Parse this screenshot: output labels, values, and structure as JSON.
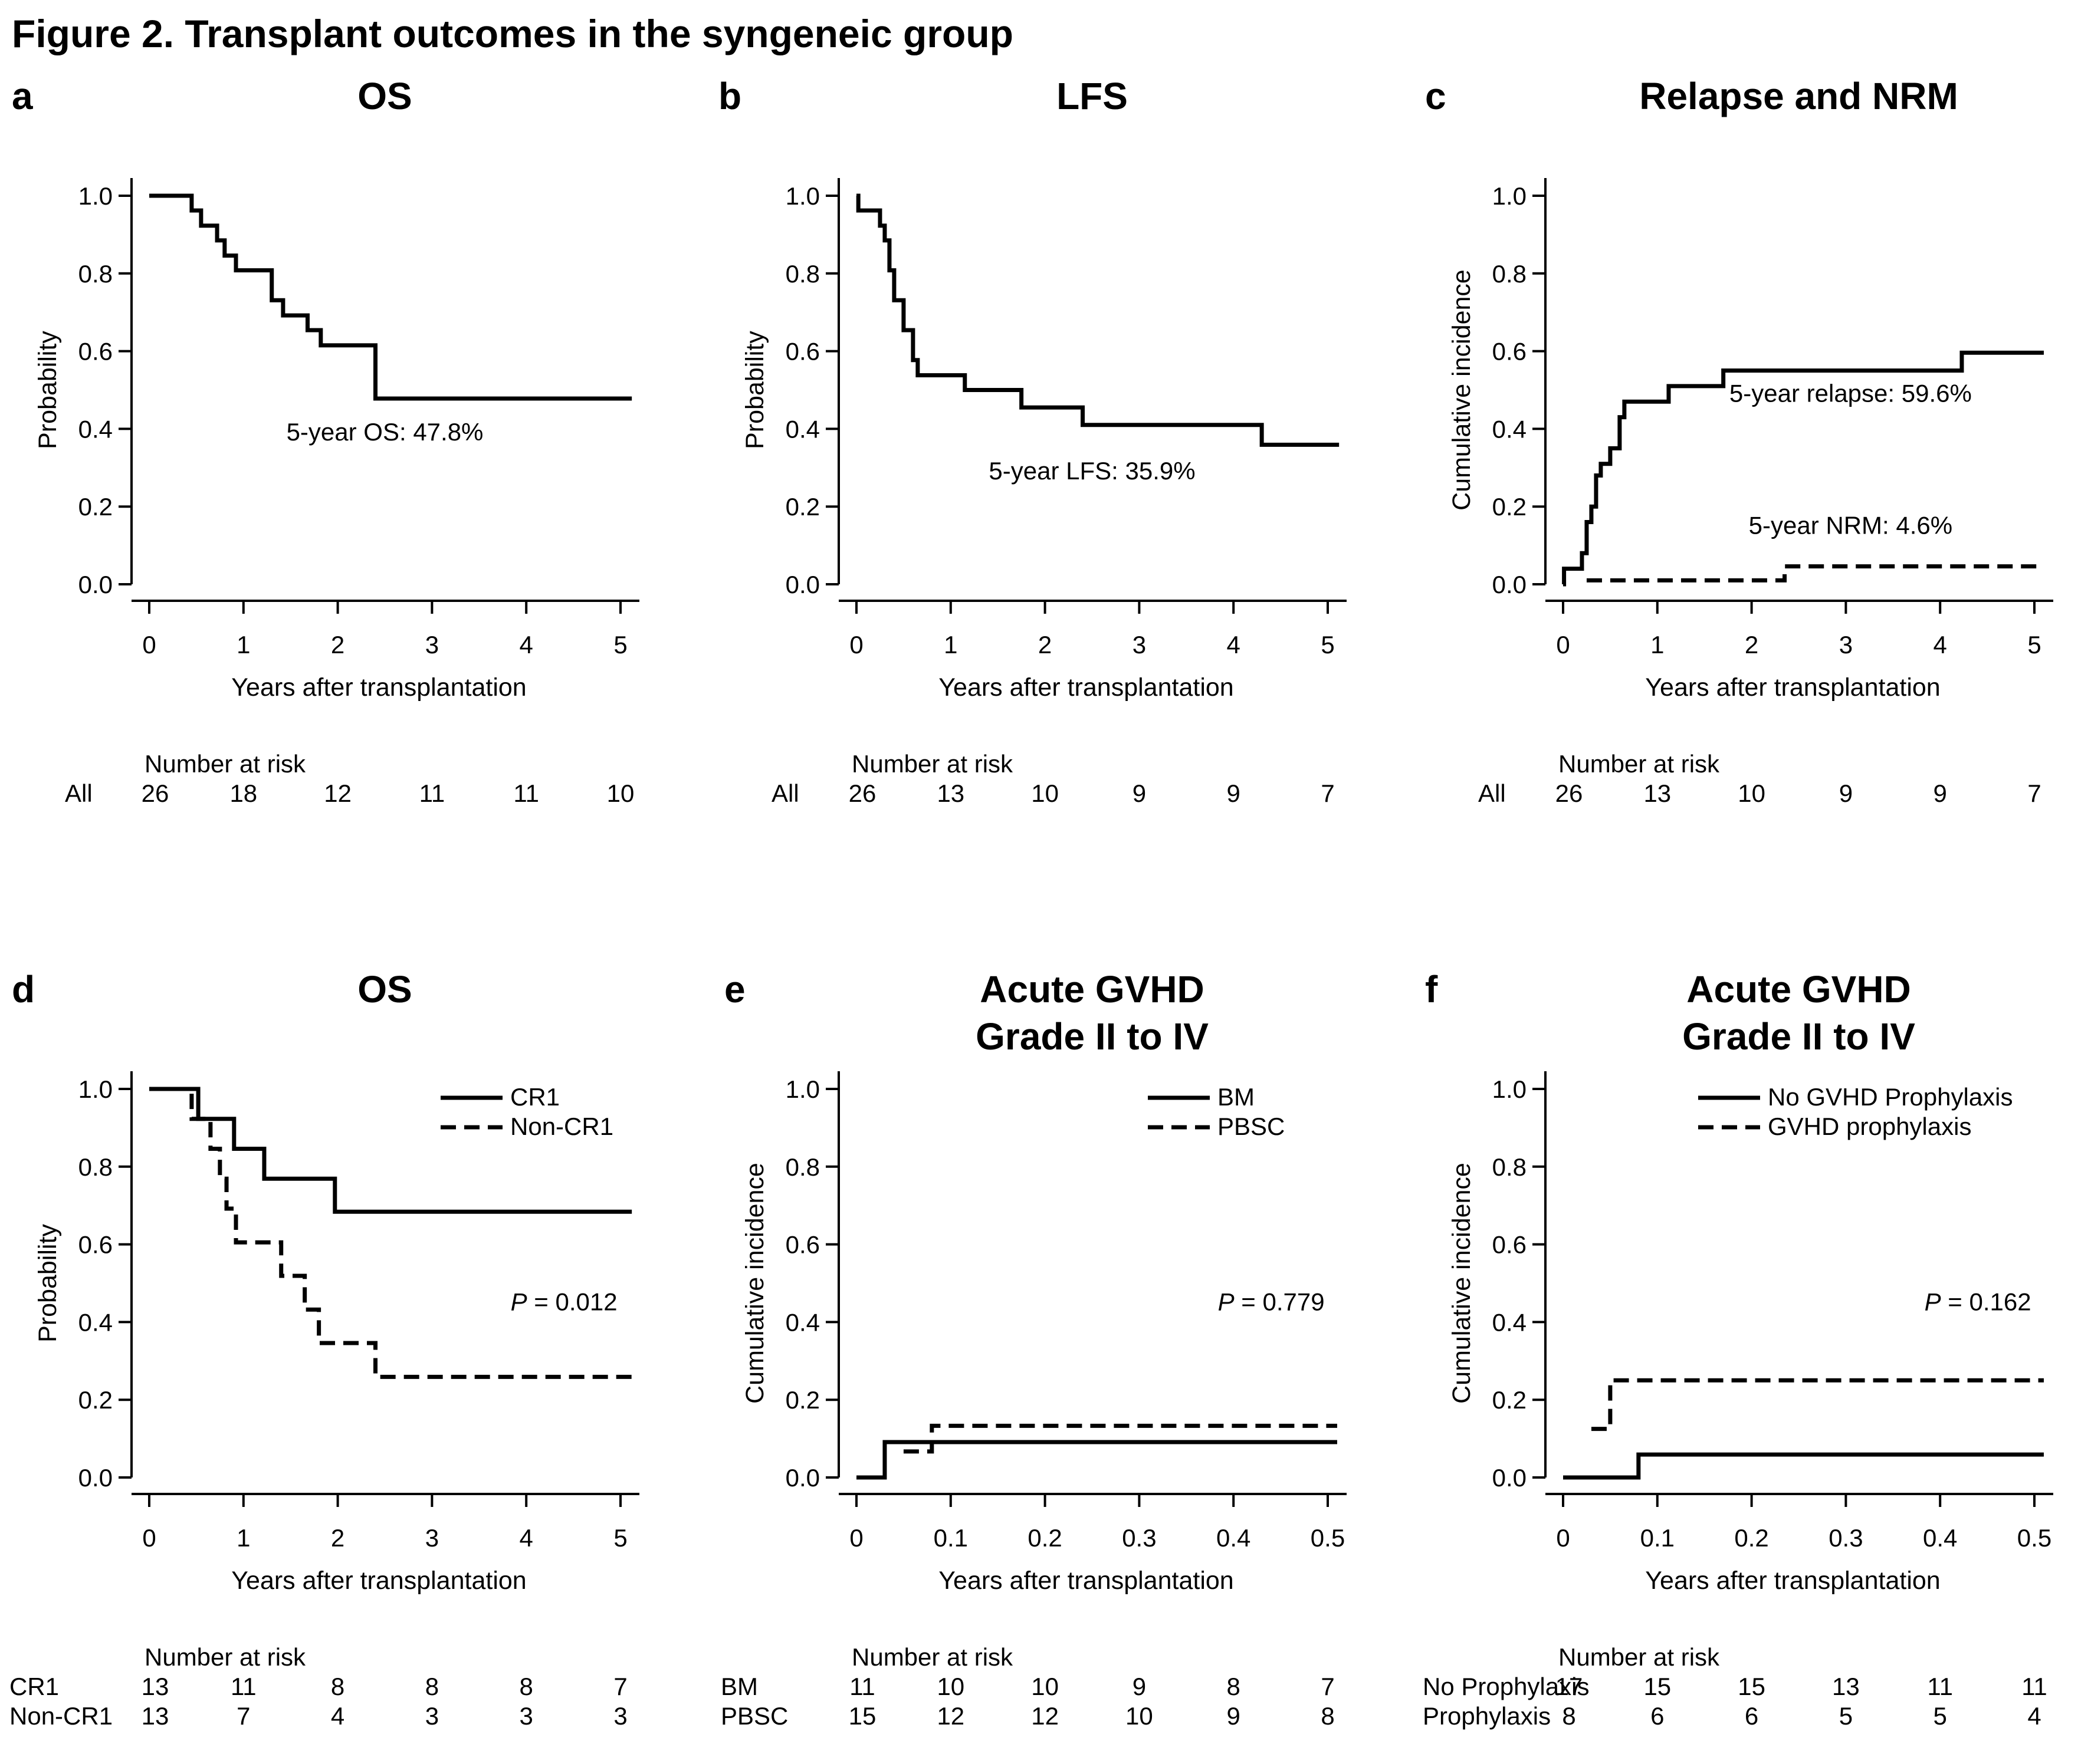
{
  "figure_title": "Figure 2. Transplant outcomes in the syngeneic group",
  "chart_data": [
    {
      "id": "a",
      "letter": "a",
      "type": "line",
      "step": true,
      "title": [
        "OS"
      ],
      "xlabel": "Years after transplantation",
      "ylabel": "Probability",
      "xlim": [
        0,
        5
      ],
      "ylim": [
        0,
        1
      ],
      "xticks": [
        0,
        1,
        2,
        3,
        4,
        5
      ],
      "xtick_labels": [
        "0",
        "1",
        "2",
        "3",
        "4",
        "5"
      ],
      "yticks": [
        0,
        0.2,
        0.4,
        0.6,
        0.8,
        1.0
      ],
      "ytick_labels": [
        "0.0",
        "0.2",
        "0.4",
        "0.6",
        "0.8",
        "1.0"
      ],
      "series": [
        {
          "name": "All",
          "style": "solid",
          "x": [
            0,
            0.45,
            0.55,
            0.72,
            0.8,
            0.92,
            1.3,
            1.42,
            1.68,
            1.82,
            2.4,
            5.12
          ],
          "y": [
            1.0,
            0.962,
            0.923,
            0.885,
            0.846,
            0.808,
            0.731,
            0.692,
            0.654,
            0.615,
            0.478,
            0.478
          ]
        }
      ],
      "annotations": [
        {
          "text": "5-year OS: 47.8%",
          "x": 2.5,
          "y": 0.37
        }
      ],
      "risk_title": "Number at risk",
      "risk_rows": [
        {
          "label": "All",
          "values": [
            "26",
            "18",
            "12",
            "11",
            "11",
            "10"
          ]
        }
      ]
    },
    {
      "id": "b",
      "letter": "b",
      "type": "line",
      "step": true,
      "title": [
        "LFS"
      ],
      "xlabel": "Years after transplantation",
      "ylabel": "Probability",
      "xlim": [
        0,
        5
      ],
      "ylim": [
        0,
        1
      ],
      "xticks": [
        0,
        1,
        2,
        3,
        4,
        5
      ],
      "xtick_labels": [
        "0",
        "1",
        "2",
        "3",
        "4",
        "5"
      ],
      "yticks": [
        0,
        0.2,
        0.4,
        0.6,
        0.8,
        1.0
      ],
      "ytick_labels": [
        "0.0",
        "0.2",
        "0.4",
        "0.6",
        "0.8",
        "1.0"
      ],
      "series": [
        {
          "name": "All",
          "style": "solid",
          "x": [
            0,
            0.02,
            0.25,
            0.3,
            0.35,
            0.4,
            0.5,
            0.6,
            0.65,
            1.15,
            1.75,
            2.4,
            4.3,
            5.12
          ],
          "y": [
            1.0,
            0.962,
            0.923,
            0.885,
            0.808,
            0.731,
            0.654,
            0.577,
            0.538,
            0.5,
            0.455,
            0.41,
            0.359,
            0.359
          ]
        }
      ],
      "annotations": [
        {
          "text": "5-year LFS: 35.9%",
          "x": 2.5,
          "y": 0.27
        }
      ],
      "risk_title": "Number at risk",
      "risk_rows": [
        {
          "label": "All",
          "values": [
            "26",
            "13",
            "10",
            "9",
            "9",
            "7"
          ]
        }
      ]
    },
    {
      "id": "c",
      "letter": "c",
      "type": "line",
      "step": true,
      "title": [
        "Relapse and NRM"
      ],
      "xlabel": "Years after transplantation",
      "ylabel": "Cumulative incidence",
      "xlim": [
        0,
        5
      ],
      "ylim": [
        0,
        1
      ],
      "xticks": [
        0,
        1,
        2,
        3,
        4,
        5
      ],
      "xtick_labels": [
        "0",
        "1",
        "2",
        "3",
        "4",
        "5"
      ],
      "yticks": [
        0,
        0.2,
        0.4,
        0.6,
        0.8,
        1.0
      ],
      "ytick_labels": [
        "0.0",
        "0.2",
        "0.4",
        "0.6",
        "0.8",
        "1.0"
      ],
      "series": [
        {
          "name": "Relapse",
          "style": "solid",
          "x": [
            0,
            0.01,
            0.2,
            0.25,
            0.3,
            0.35,
            0.4,
            0.5,
            0.6,
            0.65,
            1.12,
            1.7,
            4.23,
            5.1
          ],
          "y": [
            0,
            0.04,
            0.08,
            0.16,
            0.2,
            0.28,
            0.31,
            0.35,
            0.43,
            0.47,
            0.51,
            0.55,
            0.596,
            0.596
          ]
        },
        {
          "name": "NRM",
          "style": "dashed",
          "x": [
            0.25,
            2.35,
            5.1
          ],
          "y": [
            0.01,
            0.046,
            0.046
          ]
        }
      ],
      "annotations": [
        {
          "text": "5-year relapse: 59.6%",
          "x": 3.05,
          "y": 0.47
        },
        {
          "text": "5-year NRM: 4.6%",
          "x": 3.05,
          "y": 0.13
        }
      ],
      "risk_title": "Number at risk",
      "risk_rows": [
        {
          "label": "All",
          "values": [
            "26",
            "13",
            "10",
            "9",
            "9",
            "7"
          ]
        }
      ]
    },
    {
      "id": "d",
      "letter": "d",
      "type": "line",
      "step": true,
      "title": [
        "OS"
      ],
      "xlabel": "Years after transplantation",
      "ylabel": "Probability",
      "xlim": [
        0,
        5
      ],
      "ylim": [
        0,
        1
      ],
      "xticks": [
        0,
        1,
        2,
        3,
        4,
        5
      ],
      "xtick_labels": [
        "0",
        "1",
        "2",
        "3",
        "4",
        "5"
      ],
      "yticks": [
        0,
        0.2,
        0.4,
        0.6,
        0.8,
        1.0
      ],
      "ytick_labels": [
        "0.0",
        "0.2",
        "0.4",
        "0.6",
        "0.8",
        "1.0"
      ],
      "series": [
        {
          "name": "CR1",
          "style": "solid",
          "x": [
            0,
            0.52,
            0.9,
            1.22,
            1.97,
            5.12
          ],
          "y": [
            1.0,
            0.923,
            0.846,
            0.769,
            0.684,
            0.684
          ]
        },
        {
          "name": "Non-CR1",
          "style": "dashed",
          "x": [
            0,
            0.45,
            0.65,
            0.75,
            0.82,
            0.92,
            1.4,
            1.65,
            1.8,
            2.4,
            5.12
          ],
          "y": [
            1.0,
            0.923,
            0.846,
            0.769,
            0.692,
            0.605,
            0.519,
            0.432,
            0.346,
            0.259,
            0.259
          ]
        }
      ],
      "legend": [
        {
          "label": "CR1",
          "style": "solid"
        },
        {
          "label": "Non-CR1",
          "style": "dashed"
        }
      ],
      "pvalue": {
        "label": "P",
        "text": " = 0.012",
        "x": 4.4,
        "y": 0.43
      },
      "risk_title": "Number at risk",
      "risk_rows": [
        {
          "label": "CR1",
          "values": [
            "13",
            "11",
            "8",
            "8",
            "8",
            "7"
          ]
        },
        {
          "label": "Non-CR1",
          "values": [
            "13",
            "7",
            "4",
            "3",
            "3",
            "3"
          ]
        }
      ]
    },
    {
      "id": "e",
      "letter": "e",
      "type": "line",
      "step": true,
      "title": [
        "Acute GVHD",
        "Grade II to IV"
      ],
      "xlabel": "Years after transplantation",
      "ylabel": "Cumulative incidence",
      "xlim": [
        0,
        0.5
      ],
      "ylim": [
        0,
        1
      ],
      "xticks": [
        0,
        0.1,
        0.2,
        0.3,
        0.4,
        0.5
      ],
      "xtick_labels": [
        "0",
        "0.1",
        "0.2",
        "0.3",
        "0.4",
        "0.5"
      ],
      "yticks": [
        0,
        0.2,
        0.4,
        0.6,
        0.8,
        1.0
      ],
      "ytick_labels": [
        "0.0",
        "0.2",
        "0.4",
        "0.6",
        "0.8",
        "1.0"
      ],
      "series": [
        {
          "name": "BM",
          "style": "solid",
          "x": [
            0,
            0.03,
            0.51
          ],
          "y": [
            0,
            0.091,
            0.091
          ]
        },
        {
          "name": "PBSC",
          "style": "dashed",
          "x": [
            0.05,
            0.08,
            0.51
          ],
          "y": [
            0.067,
            0.133,
            0.133
          ]
        }
      ],
      "legend": [
        {
          "label": "BM",
          "style": "solid"
        },
        {
          "label": "PBSC",
          "style": "dashed"
        }
      ],
      "pvalue": {
        "label": "P",
        "text": " = 0.779",
        "x": 0.44,
        "y": 0.43
      },
      "risk_title": "Number at risk",
      "risk_rows": [
        {
          "label": "BM",
          "values": [
            "11",
            "10",
            "10",
            "9",
            "8",
            "7"
          ]
        },
        {
          "label": "PBSC",
          "values": [
            "15",
            "12",
            "12",
            "10",
            "9",
            "8"
          ]
        }
      ]
    },
    {
      "id": "f",
      "letter": "f",
      "type": "line",
      "step": true,
      "title": [
        "Acute GVHD",
        "Grade II to IV"
      ],
      "xlabel": "Years after transplantation",
      "ylabel": "Cumulative incidence",
      "xlim": [
        0,
        0.5
      ],
      "ylim": [
        0,
        1
      ],
      "xticks": [
        0,
        0.1,
        0.2,
        0.3,
        0.4,
        0.5
      ],
      "xtick_labels": [
        "0",
        "0.1",
        "0.2",
        "0.3",
        "0.4",
        "0.5"
      ],
      "yticks": [
        0,
        0.2,
        0.4,
        0.6,
        0.8,
        1.0
      ],
      "ytick_labels": [
        "0.0",
        "0.2",
        "0.4",
        "0.6",
        "0.8",
        "1.0"
      ],
      "series": [
        {
          "name": "No GVHD Prophylaxis",
          "style": "solid",
          "x": [
            0,
            0.08,
            0.51
          ],
          "y": [
            0,
            0.059,
            0.059
          ]
        },
        {
          "name": "GVHD prophylaxis",
          "style": "dashed",
          "x": [
            0.03,
            0.05,
            0.51
          ],
          "y": [
            0.125,
            0.25,
            0.25
          ]
        }
      ],
      "legend": [
        {
          "label": "No GVHD Prophylaxis",
          "style": "solid"
        },
        {
          "label": "GVHD prophylaxis",
          "style": "dashed"
        }
      ],
      "pvalue": {
        "label": "P",
        "text": " = 0.162",
        "x": 0.44,
        "y": 0.43
      },
      "risk_title": "Number at risk",
      "risk_rows": [
        {
          "label": "No Prophylaxis",
          "values": [
            "17",
            "15",
            "15",
            "13",
            "11",
            "11"
          ]
        },
        {
          "label": "Prophylaxis",
          "values": [
            "8",
            "6",
            "6",
            "5",
            "5",
            "4"
          ]
        }
      ]
    }
  ]
}
